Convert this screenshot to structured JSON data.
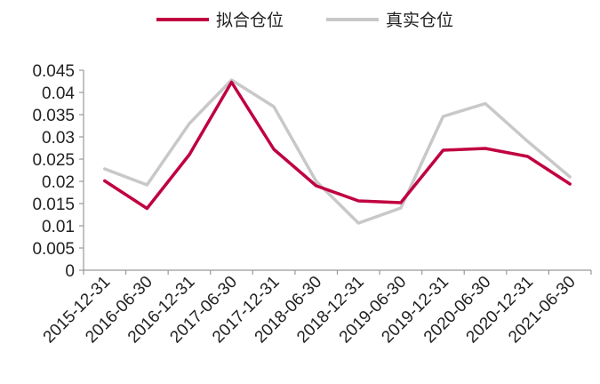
{
  "chart_data": {
    "type": "line",
    "title": "",
    "xlabel": "",
    "ylabel": "",
    "ylim": [
      0,
      0.045
    ],
    "yticks": [
      "0",
      "0.005",
      "0.01",
      "0.015",
      "0.02",
      "0.025",
      "0.03",
      "0.035",
      "0.04",
      "0.045"
    ],
    "categories": [
      "2015-12-31",
      "2016-06-30",
      "2016-12-31",
      "2017-06-30",
      "2017-12-31",
      "2018-06-30",
      "2018-12-31",
      "2019-06-30",
      "2019-12-31",
      "2020-06-30",
      "2020-12-31",
      "2021-06-30"
    ],
    "legend_position": "top-center",
    "grid": false,
    "series": [
      {
        "name": "拟合仓位",
        "color": "#C00040",
        "values": [
          0.0201,
          0.0139,
          0.026,
          0.0423,
          0.0272,
          0.019,
          0.0156,
          0.0152,
          0.027,
          0.0274,
          0.0256,
          0.0194
        ]
      },
      {
        "name": "真实仓位",
        "color": "#C8C8C8",
        "values": [
          0.0228,
          0.0192,
          0.033,
          0.0428,
          0.0368,
          0.02,
          0.0106,
          0.014,
          0.0346,
          0.0375,
          0.029,
          0.021
        ]
      }
    ]
  }
}
